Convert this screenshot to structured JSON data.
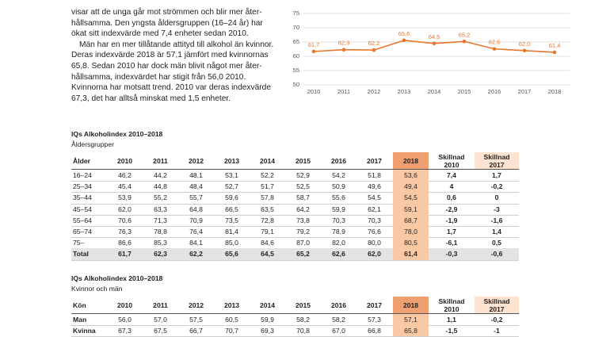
{
  "paragraph": [
    "visar att de unga går mot strömmen och blir mer åter-",
    "hållsamma. Den yngsta åldersgruppen (16–24 år) har",
    "ökat sitt indexvärde med 7,4 enheter sedan 2010.",
    "Män har en mer tillåtande attityd till alkohol än kvinnor.",
    "Deras indexvärde 2018 är 57,1 jämfört med kvinnornas",
    "65,8. Sedan 2010 har dock män blivit något mer åter-",
    "hållsamma, indexvärdet har stigit från 56,0 2010.",
    "Kvinnorna har motsatt trend. 2010 var deras indexvärde",
    "67,3, det har alltså minskat med 1,5 enheter."
  ],
  "chart_data": {
    "type": "line",
    "categories": [
      "2010",
      "2011",
      "2012",
      "2013",
      "2014",
      "2015",
      "2016",
      "2017",
      "2018"
    ],
    "values": [
      61.7,
      62.3,
      62.2,
      65.6,
      64.5,
      65.2,
      62.6,
      62.0,
      61.4
    ],
    "value_labels": [
      "61,7",
      "62,3",
      "62,2",
      "65,6",
      "64,5",
      "65,2",
      "62,6",
      "62,0",
      "61,4"
    ],
    "color": "#e8762c",
    "ylim": [
      50,
      75
    ],
    "yticks": [
      50,
      55,
      60,
      65,
      70,
      75
    ],
    "grid": true
  },
  "tables": [
    {
      "title": "IQs Alkoholindex 2010–2018",
      "subtitle": "Åldersgrupper",
      "header": [
        "Ålder",
        "2010",
        "2011",
        "2012",
        "2013",
        "2014",
        "2015",
        "2016",
        "2017",
        "2018",
        "Skillnad 2010",
        "Skillnad 2017"
      ],
      "rows": [
        [
          "16–24",
          "46,2",
          "44,2",
          "48,1",
          "53,1",
          "52,2",
          "52,9",
          "54,2",
          "51,8",
          "53,6",
          "7,4",
          "1,7"
        ],
        [
          "25–34",
          "45,4",
          "44,8",
          "48,4",
          "52,7",
          "51,7",
          "52,5",
          "50,9",
          "49,6",
          "49,4",
          "4",
          "-0,2"
        ],
        [
          "35–44",
          "53,9",
          "55,2",
          "55,7",
          "59,6",
          "57,8",
          "58,7",
          "55,6",
          "54,5",
          "54,5",
          "0,6",
          "0"
        ],
        [
          "45–54",
          "62,0",
          "63,3",
          "64,8",
          "66,5",
          "63,5",
          "64,2",
          "59,9",
          "62,1",
          "59,1",
          "-2,9",
          "-3"
        ],
        [
          "55–64",
          "70,6",
          "71,3",
          "70,9",
          "73,5",
          "72,8",
          "73,8",
          "70,3",
          "70,3",
          "68,7",
          "-1,9",
          "-1,6"
        ],
        [
          "65–74",
          "76,3",
          "78,8",
          "76,4",
          "81,4",
          "79,1",
          "79,2",
          "78,9",
          "76,6",
          "78,0",
          "1,7",
          "1,4"
        ],
        [
          "75–",
          "86,6",
          "85,3",
          "84,1",
          "85,0",
          "84,6",
          "87,0",
          "82,0",
          "80,0",
          "80,5",
          "-6,1",
          "0,5"
        ],
        [
          "Total",
          "61,7",
          "62,3",
          "62,2",
          "65,6",
          "64,5",
          "65,2",
          "62,6",
          "62,0",
          "61,4",
          "-0,3",
          "-0,6"
        ]
      ]
    },
    {
      "title": "IQs Alkoholindex 2010–2018",
      "subtitle": "Kvinnor och män",
      "header": [
        "Kön",
        "2010",
        "2011",
        "2012",
        "2013",
        "2014",
        "2015",
        "2016",
        "2017",
        "2018",
        "Skillnad 2010",
        "Skillnad 2017"
      ],
      "rows": [
        [
          "Man",
          "56,0",
          "57,0",
          "57,5",
          "60,5",
          "59,9",
          "58,2",
          "58,2",
          "57,3",
          "57,1",
          "1,1",
          "-0,2"
        ],
        [
          "Kvinna",
          "67,3",
          "67,5",
          "66,7",
          "70,7",
          "69,3",
          "70,8",
          "67,0",
          "66,8",
          "65,8",
          "-1,5",
          "-1"
        ]
      ]
    }
  ]
}
